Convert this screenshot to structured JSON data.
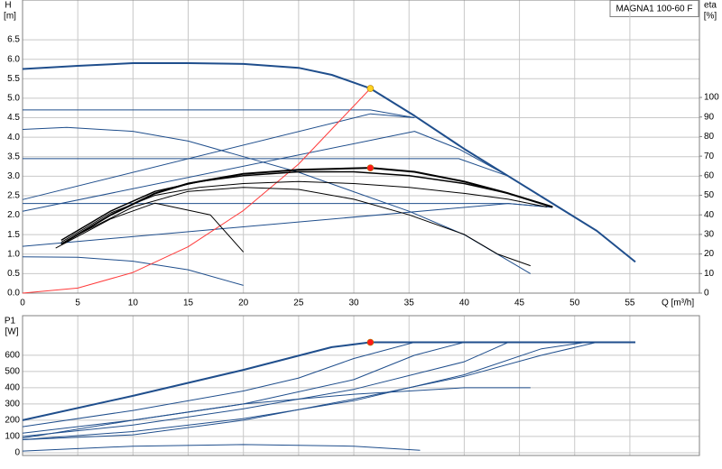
{
  "chart_data": [
    {
      "type": "line",
      "title": "MAGNA1 100-60 F",
      "ylabel": "H",
      "yunit": "[m]",
      "y2label": "eta",
      "y2unit": "[%]",
      "xlabel": "Q [m³/h]",
      "xlim": [
        0,
        61.3
      ],
      "xticks": [
        0,
        5,
        10,
        15,
        20,
        25,
        30,
        35,
        40,
        45,
        50,
        55
      ],
      "ylim": [
        0,
        7.52
      ],
      "yticks": [
        {
          "value": 0,
          "label": "0.0"
        },
        {
          "value": 0.5,
          "label": "0.5"
        },
        {
          "value": 1,
          "label": "1.0"
        },
        {
          "value": 1.5,
          "label": "1.5"
        },
        {
          "value": 2,
          "label": "2.0"
        },
        {
          "value": 2.5,
          "label": "2.5"
        },
        {
          "value": 3,
          "label": "3.0"
        },
        {
          "value": 3.5,
          "label": "3.5"
        },
        {
          "value": 4,
          "label": "4.0"
        },
        {
          "value": 4.5,
          "label": "4.5"
        },
        {
          "value": 5,
          "label": "5.0"
        },
        {
          "value": 5.5,
          "label": "5.5"
        },
        {
          "value": 6,
          "label": "6.0"
        },
        {
          "value": 6.5,
          "label": "6.5"
        }
      ],
      "y2lim": [
        0,
        149.8
      ],
      "y2ticks": [
        0,
        10,
        20,
        30,
        40,
        50,
        60,
        70,
        80,
        90,
        100
      ],
      "grid": true,
      "series": [
        {
          "color": "#1f4e8c",
          "linewidth": 2,
          "x": [
            0,
            5,
            10,
            15,
            20,
            25,
            28,
            31.5,
            35.5,
            40,
            44,
            48,
            52,
            55.5
          ],
          "values": [
            5.75,
            5.83,
            5.9,
            5.9,
            5.88,
            5.78,
            5.6,
            5.25,
            4.55,
            3.7,
            3.0,
            2.3,
            1.6,
            0.8
          ]
        },
        {
          "color": "#1f4e8c",
          "linewidth": 1,
          "x": [
            0,
            31.5,
            35.5
          ],
          "values": [
            4.7,
            4.7,
            4.5
          ]
        },
        {
          "color": "#1f4e8c",
          "linewidth": 1,
          "x": [
            0,
            39.5,
            44
          ],
          "values": [
            3.45,
            3.45,
            3.0
          ]
        },
        {
          "color": "#1f4e8c",
          "linewidth": 1,
          "x": [
            0,
            44,
            48
          ],
          "values": [
            2.3,
            2.3,
            2.2
          ]
        },
        {
          "color": "#1f4e8c",
          "linewidth": 1,
          "x": [
            0,
            31.5,
            35.5
          ],
          "values": [
            2.4,
            4.6,
            4.5
          ]
        },
        {
          "color": "#1f4e8c",
          "linewidth": 1,
          "x": [
            0,
            35.5,
            39.5,
            44
          ],
          "values": [
            2.1,
            4.15,
            3.7,
            3.0
          ]
        },
        {
          "color": "#1f4e8c",
          "linewidth": 1,
          "x": [
            0,
            44,
            48
          ],
          "values": [
            1.2,
            2.3,
            2.2
          ]
        },
        {
          "color": "#1f4e8c",
          "linewidth": 1,
          "x": [
            0,
            4,
            10,
            15,
            20,
            25,
            30,
            35,
            40,
            46
          ],
          "values": [
            4.2,
            4.25,
            4.15,
            3.9,
            3.5,
            3.1,
            2.6,
            2.1,
            1.5,
            0.5
          ]
        },
        {
          "color": "#1f4e8c",
          "linewidth": 1,
          "x": [
            0,
            5,
            10,
            15,
            20
          ],
          "values": [
            0.93,
            0.92,
            0.82,
            0.6,
            0.2
          ]
        },
        {
          "color": "#ff3b3b",
          "linewidth": 1,
          "x": [
            0,
            5,
            10,
            15,
            20,
            25,
            31.5
          ],
          "values": [
            0,
            0.13,
            0.53,
            1.19,
            2.12,
            3.31,
            5.25
          ]
        },
        {
          "color": "#000000",
          "linewidth": 2,
          "axis": "y2",
          "x": [
            3.5,
            8,
            12,
            15,
            20,
            25,
            31.5,
            35.5,
            40,
            44,
            48
          ],
          "values": [
            25,
            40,
            51,
            56,
            61,
            63,
            64,
            62,
            57,
            51,
            44
          ]
        },
        {
          "color": "#000000",
          "linewidth": 1.5,
          "axis": "y2",
          "x": [
            3.5,
            8,
            12,
            16,
            20,
            25,
            30,
            35,
            40,
            44,
            48
          ],
          "values": [
            27,
            42,
            52,
            57,
            60,
            62,
            62,
            60,
            56,
            51,
            44
          ]
        },
        {
          "color": "#000000",
          "linewidth": 1,
          "axis": "y2",
          "x": [
            4,
            10,
            15,
            20,
            25,
            30,
            35,
            40,
            43,
            46
          ],
          "values": [
            27,
            44,
            52,
            54,
            53,
            48,
            40,
            30,
            20,
            14
          ]
        },
        {
          "color": "#000000",
          "linewidth": 1,
          "axis": "y2",
          "x": [
            3,
            8,
            12,
            17,
            20
          ],
          "values": [
            23,
            38,
            46,
            40,
            21
          ]
        },
        {
          "color": "#000000",
          "linewidth": 1,
          "axis": "y2",
          "x": [
            3.5,
            8,
            12,
            16,
            20,
            25,
            30,
            35,
            40,
            44,
            47.5
          ],
          "values": [
            26,
            41,
            50,
            54,
            56,
            57,
            56,
            54,
            51,
            48,
            44
          ]
        },
        {
          "color": "#ffd21f",
          "marker": true,
          "x": [
            31.5
          ],
          "values": [
            5.25
          ]
        },
        {
          "color": "#ff1a1a",
          "marker": true,
          "axis": "y2",
          "x": [
            31.5
          ],
          "values": [
            64
          ]
        }
      ]
    },
    {
      "type": "line",
      "ylabel": "P1",
      "yunit": "[W]",
      "xlim": [
        0,
        61.3
      ],
      "ylim": [
        -17,
        844
      ],
      "yticks": [
        0,
        100,
        200,
        300,
        400,
        500,
        600
      ],
      "grid": true,
      "series": [
        {
          "color": "#1f4e8c",
          "linewidth": 2,
          "x": [
            0,
            10,
            20,
            28,
            31.5,
            55.5
          ],
          "values": [
            200,
            350,
            510,
            650,
            680,
            680
          ]
        },
        {
          "color": "#1f4e8c",
          "linewidth": 1,
          "x": [
            0,
            10,
            20,
            25,
            30,
            35.5,
            55.5
          ],
          "values": [
            160,
            260,
            380,
            460,
            580,
            680,
            680
          ]
        },
        {
          "color": "#1f4e8c",
          "linewidth": 1,
          "x": [
            0,
            10,
            20,
            30,
            35.5,
            40
          ],
          "values": [
            120,
            200,
            300,
            450,
            600,
            680
          ]
        },
        {
          "color": "#1f4e8c",
          "linewidth": 1,
          "x": [
            0,
            10,
            20,
            30,
            40,
            44
          ],
          "values": [
            100,
            170,
            270,
            390,
            560,
            680
          ]
        },
        {
          "color": "#1f4e8c",
          "linewidth": 1,
          "x": [
            0,
            10,
            20,
            30,
            40,
            47,
            51,
            55.5
          ],
          "values": [
            80,
            130,
            210,
            320,
            480,
            640,
            680,
            680
          ]
        },
        {
          "color": "#1f4e8c",
          "linewidth": 1,
          "x": [
            0,
            10,
            20,
            30,
            40,
            47,
            52
          ],
          "values": [
            80,
            110,
            200,
            330,
            470,
            600,
            680
          ]
        },
        {
          "color": "#1f4e8c",
          "linewidth": 1,
          "x": [
            0,
            10,
            20,
            30,
            40,
            46
          ],
          "values": [
            90,
            200,
            300,
            360,
            400,
            400
          ]
        },
        {
          "color": "#1f4e8c",
          "linewidth": 1,
          "x": [
            0,
            10,
            20,
            30,
            36
          ],
          "values": [
            10,
            40,
            50,
            40,
            15
          ]
        },
        {
          "color": "#ff1a1a",
          "marker": true,
          "x": [
            31.5
          ],
          "values": [
            680
          ]
        }
      ]
    }
  ]
}
